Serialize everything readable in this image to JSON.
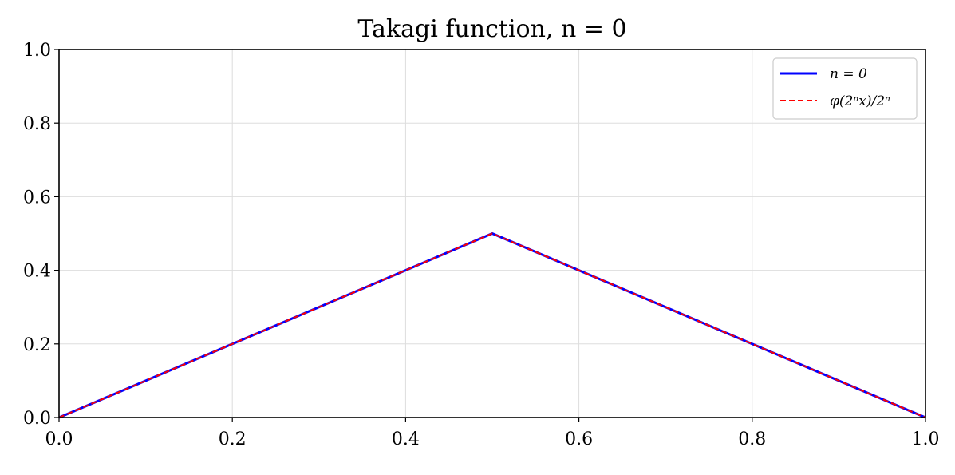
{
  "chart_data": {
    "type": "line",
    "title": "Takagi function, n = 0",
    "xlabel": "",
    "ylabel": "",
    "xlim": [
      0.0,
      1.0
    ],
    "ylim": [
      0.0,
      1.0
    ],
    "x_ticks": [
      "0.0",
      "0.2",
      "0.4",
      "0.6",
      "0.8",
      "1.0"
    ],
    "y_ticks": [
      "0.0",
      "0.2",
      "0.4",
      "0.6",
      "0.8",
      "1.0"
    ],
    "grid": true,
    "legend_position": "top-right",
    "series": [
      {
        "name": "n = 0",
        "color": "#0000ff",
        "style": "solid",
        "x": [
          0.0,
          0.5,
          1.0
        ],
        "y": [
          0.0,
          0.5,
          0.0
        ]
      },
      {
        "name": "φ(2ⁿx)/2ⁿ",
        "color": "#ff0000",
        "style": "dashed",
        "x": [
          0.0,
          0.5,
          1.0
        ],
        "y": [
          0.0,
          0.5,
          0.0
        ]
      }
    ]
  }
}
